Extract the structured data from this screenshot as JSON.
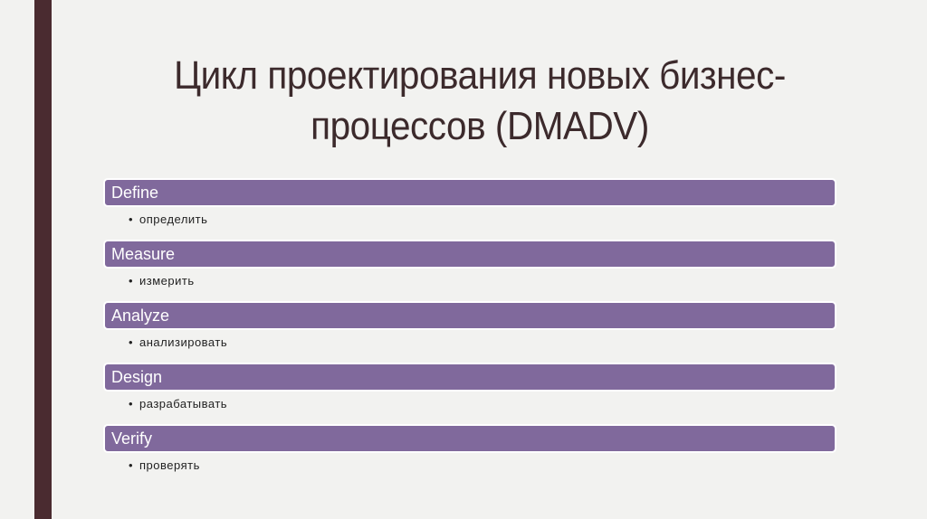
{
  "slide": {
    "title": "Цикл проектирования новых бизнес-процессов (DMADV)",
    "title_line1": "Цикл проектирования новых бизнес-",
    "title_line2": "процессов (DMADV)",
    "colors": {
      "background": "#f2f2f0",
      "accent_stripe": "#4a2b30",
      "bar_fill": "#80699c",
      "title_text": "#3c2a2c"
    },
    "items": [
      {
        "label": "Define",
        "detail": "определить"
      },
      {
        "label": "Measure",
        "detail": "измерить"
      },
      {
        "label": "Analyze",
        "detail": "анализировать"
      },
      {
        "label": "Design",
        "detail": "разрабатывать"
      },
      {
        "label": "Verify",
        "detail": "проверять"
      }
    ],
    "bullet_glyph": "•"
  }
}
